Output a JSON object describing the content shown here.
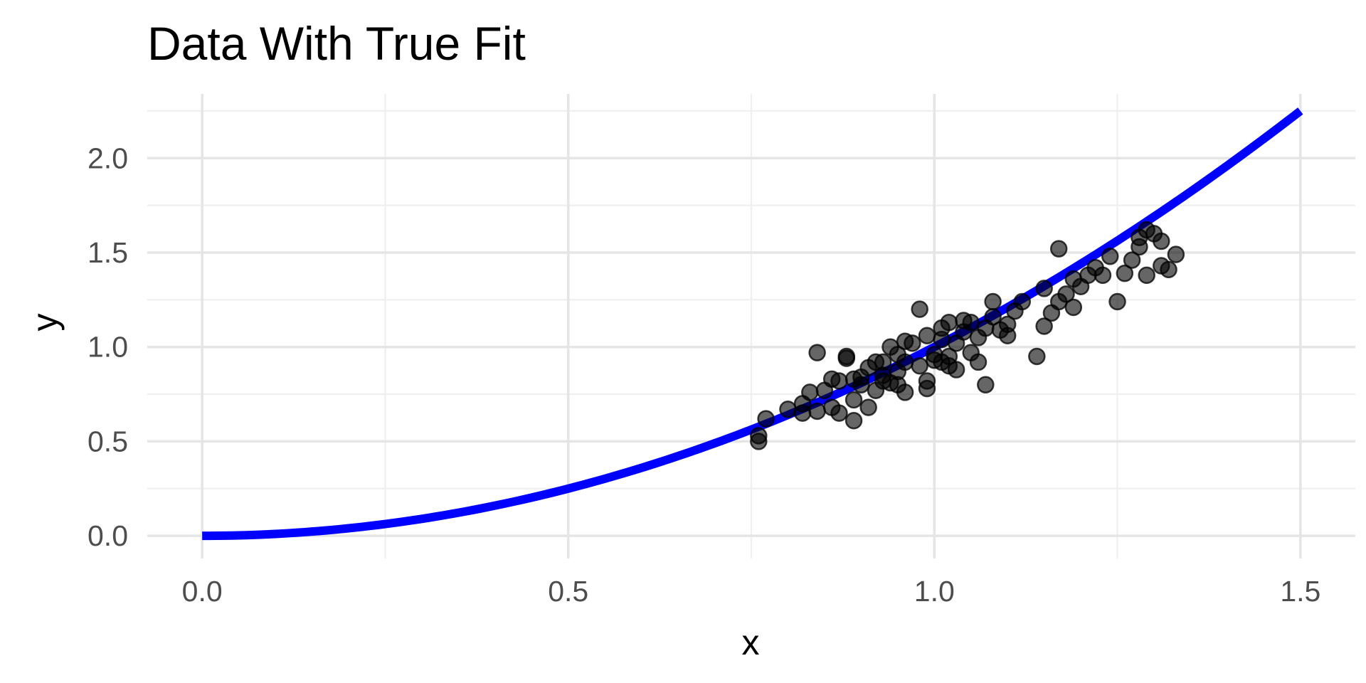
{
  "chart_data": {
    "type": "scatter",
    "title": "Data With True Fit",
    "xlabel": "x",
    "ylabel": "y",
    "xlim": [
      -0.075,
      1.575
    ],
    "ylim": [
      -0.12,
      2.34
    ],
    "x_ticks": [
      0.0,
      0.5,
      1.0,
      1.5
    ],
    "x_tick_labels": [
      "0.0",
      "0.5",
      "1.0",
      "1.5"
    ],
    "y_ticks": [
      0.0,
      0.5,
      1.0,
      1.5,
      2.0
    ],
    "y_tick_labels": [
      "0.0",
      "0.5",
      "1.0",
      "1.5",
      "2.0"
    ],
    "grid": true,
    "legend": "none",
    "points_color": "#000000",
    "points_opacity": 0.6,
    "curve_color": "#0000ff",
    "curve": {
      "equation": "y = x^2",
      "x_range": [
        0,
        1.5
      ]
    },
    "points": [
      {
        "x": 0.76,
        "y": 0.5
      },
      {
        "x": 0.76,
        "y": 0.53
      },
      {
        "x": 0.77,
        "y": 0.62
      },
      {
        "x": 0.8,
        "y": 0.67
      },
      {
        "x": 0.82,
        "y": 0.65
      },
      {
        "x": 0.82,
        "y": 0.7
      },
      {
        "x": 0.83,
        "y": 0.76
      },
      {
        "x": 0.84,
        "y": 0.66
      },
      {
        "x": 0.84,
        "y": 0.97
      },
      {
        "x": 0.85,
        "y": 0.77
      },
      {
        "x": 0.86,
        "y": 0.68
      },
      {
        "x": 0.86,
        "y": 0.83
      },
      {
        "x": 0.87,
        "y": 0.65
      },
      {
        "x": 0.87,
        "y": 0.82
      },
      {
        "x": 0.88,
        "y": 0.94
      },
      {
        "x": 0.88,
        "y": 0.95
      },
      {
        "x": 0.89,
        "y": 0.72
      },
      {
        "x": 0.89,
        "y": 0.61
      },
      {
        "x": 0.89,
        "y": 0.83
      },
      {
        "x": 0.9,
        "y": 0.84
      },
      {
        "x": 0.9,
        "y": 0.8
      },
      {
        "x": 0.91,
        "y": 0.68
      },
      {
        "x": 0.91,
        "y": 0.89
      },
      {
        "x": 0.92,
        "y": 0.92
      },
      {
        "x": 0.92,
        "y": 0.77
      },
      {
        "x": 0.93,
        "y": 0.85
      },
      {
        "x": 0.93,
        "y": 0.82
      },
      {
        "x": 0.93,
        "y": 0.92
      },
      {
        "x": 0.94,
        "y": 1.0
      },
      {
        "x": 0.94,
        "y": 0.81
      },
      {
        "x": 0.95,
        "y": 0.96
      },
      {
        "x": 0.95,
        "y": 0.87
      },
      {
        "x": 0.95,
        "y": 0.8
      },
      {
        "x": 0.96,
        "y": 1.03
      },
      {
        "x": 0.96,
        "y": 0.76
      },
      {
        "x": 0.96,
        "y": 0.92
      },
      {
        "x": 0.97,
        "y": 1.02
      },
      {
        "x": 0.98,
        "y": 1.2
      },
      {
        "x": 0.98,
        "y": 0.9
      },
      {
        "x": 0.99,
        "y": 0.82
      },
      {
        "x": 0.99,
        "y": 0.78
      },
      {
        "x": 0.99,
        "y": 1.06
      },
      {
        "x": 1.0,
        "y": 0.96
      },
      {
        "x": 1.0,
        "y": 0.93
      },
      {
        "x": 1.01,
        "y": 1.1
      },
      {
        "x": 1.01,
        "y": 1.04
      },
      {
        "x": 1.01,
        "y": 0.92
      },
      {
        "x": 1.02,
        "y": 0.95
      },
      {
        "x": 1.02,
        "y": 1.13
      },
      {
        "x": 1.02,
        "y": 0.9
      },
      {
        "x": 1.03,
        "y": 1.02
      },
      {
        "x": 1.03,
        "y": 0.88
      },
      {
        "x": 1.04,
        "y": 1.14
      },
      {
        "x": 1.04,
        "y": 1.08
      },
      {
        "x": 1.05,
        "y": 1.13
      },
      {
        "x": 1.05,
        "y": 0.97
      },
      {
        "x": 1.06,
        "y": 0.92
      },
      {
        "x": 1.06,
        "y": 1.05
      },
      {
        "x": 1.07,
        "y": 0.8
      },
      {
        "x": 1.07,
        "y": 1.1
      },
      {
        "x": 1.08,
        "y": 1.24
      },
      {
        "x": 1.08,
        "y": 1.16
      },
      {
        "x": 1.09,
        "y": 1.09
      },
      {
        "x": 1.1,
        "y": 1.12
      },
      {
        "x": 1.1,
        "y": 1.06
      },
      {
        "x": 1.11,
        "y": 1.19
      },
      {
        "x": 1.12,
        "y": 1.24
      },
      {
        "x": 1.14,
        "y": 0.95
      },
      {
        "x": 1.15,
        "y": 1.31
      },
      {
        "x": 1.15,
        "y": 1.11
      },
      {
        "x": 1.16,
        "y": 1.18
      },
      {
        "x": 1.17,
        "y": 1.24
      },
      {
        "x": 1.17,
        "y": 1.52
      },
      {
        "x": 1.18,
        "y": 1.28
      },
      {
        "x": 1.19,
        "y": 1.36
      },
      {
        "x": 1.19,
        "y": 1.21
      },
      {
        "x": 1.2,
        "y": 1.32
      },
      {
        "x": 1.21,
        "y": 1.38
      },
      {
        "x": 1.22,
        "y": 1.42
      },
      {
        "x": 1.23,
        "y": 1.38
      },
      {
        "x": 1.24,
        "y": 1.48
      },
      {
        "x": 1.25,
        "y": 1.24
      },
      {
        "x": 1.26,
        "y": 1.39
      },
      {
        "x": 1.27,
        "y": 1.46
      },
      {
        "x": 1.28,
        "y": 1.53
      },
      {
        "x": 1.28,
        "y": 1.58
      },
      {
        "x": 1.29,
        "y": 1.38
      },
      {
        "x": 1.29,
        "y": 1.62
      },
      {
        "x": 1.3,
        "y": 1.6
      },
      {
        "x": 1.31,
        "y": 1.56
      },
      {
        "x": 1.31,
        "y": 1.43
      },
      {
        "x": 1.32,
        "y": 1.41
      },
      {
        "x": 1.33,
        "y": 1.49
      }
    ]
  }
}
